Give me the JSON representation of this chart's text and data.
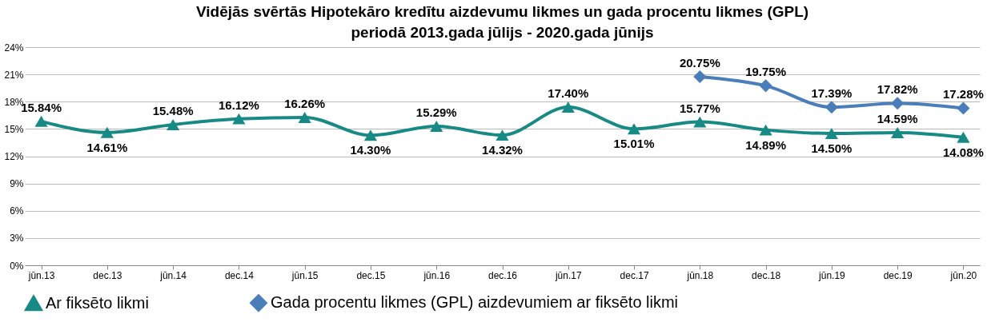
{
  "chart_data": {
    "type": "line",
    "title": "Vidējās svērtās Hipotekāro kredītu aizdevumu likmes un gada procentu likmes (GPL)\nperiodā 2013.gada jūlijs - 2020.gada jūnijs",
    "categories": [
      "jūn.13",
      "dec.13",
      "jūn.14",
      "dec.14",
      "jūn.15",
      "dec.15",
      "jūn.16",
      "dec.16",
      "jūn.17",
      "dec.17",
      "jūn.18",
      "dec.18",
      "jūn.19",
      "dec.19",
      "jūn.20"
    ],
    "series": [
      {
        "name": "Ar fiksēto likmi",
        "color": "#178a85",
        "marker": "triangle",
        "values": [
          15.84,
          14.61,
          15.48,
          16.12,
          16.26,
          14.3,
          15.29,
          14.32,
          17.4,
          15.01,
          15.77,
          14.89,
          14.5,
          14.59,
          14.08
        ],
        "value_labels": [
          "15.84%",
          "14.61%",
          "15.48%",
          "16.12%",
          "16.26%",
          "14.30%",
          "15.29%",
          "14.32%",
          "17.40%",
          "15.01%",
          "15.77%",
          "14.89%",
          "14.50%",
          "14.59%",
          "14.08%"
        ]
      },
      {
        "name": "Gada procentu likmes (GPL) aizdevumiem ar fiksēto likmi",
        "color": "#4a7ebb",
        "marker": "diamond",
        "values": [
          null,
          null,
          null,
          null,
          null,
          null,
          null,
          null,
          null,
          null,
          20.75,
          19.75,
          17.39,
          17.82,
          17.28
        ],
        "value_labels": [
          null,
          null,
          null,
          null,
          null,
          null,
          null,
          null,
          null,
          null,
          "20.75%",
          "19.75%",
          "17.39%",
          "17.82%",
          "17.28%"
        ]
      }
    ],
    "ylim": [
      0,
      24
    ],
    "yticks": [
      {
        "value": 0,
        "label": "0%"
      },
      {
        "value": 3,
        "label": "3%"
      },
      {
        "value": 6,
        "label": "6%"
      },
      {
        "value": 9,
        "label": "9%"
      },
      {
        "value": 12,
        "label": "12%"
      },
      {
        "value": 15,
        "label": "15%"
      },
      {
        "value": 18,
        "label": "18%"
      },
      {
        "value": 21,
        "label": "21%"
      },
      {
        "value": 24,
        "label": "24%"
      }
    ],
    "grid": "y",
    "legend": "bottom"
  }
}
